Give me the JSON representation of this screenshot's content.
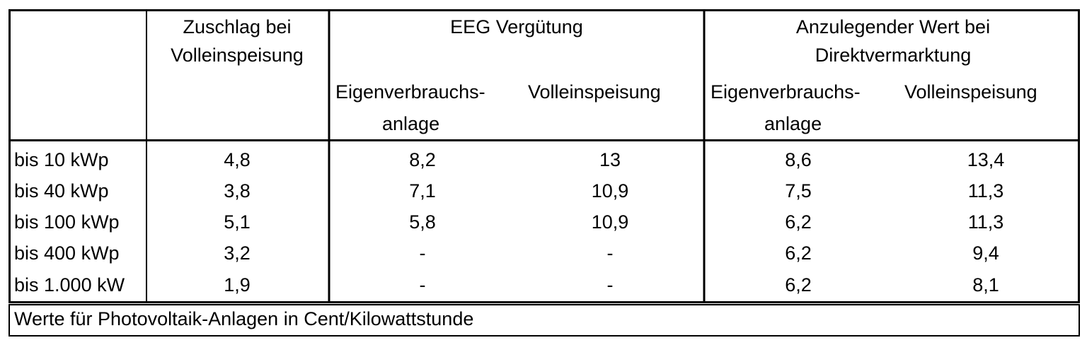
{
  "table": {
    "header": [
      {
        "lines": [
          "Zuschlag bei",
          "Volleinspeisung"
        ]
      },
      {
        "lines": [
          "EEG Vergütung"
        ],
        "subheaders": [
          [
            "Eigenverbrauchs-",
            "anlage"
          ],
          [
            "Volleinspeisung"
          ]
        ]
      },
      {
        "lines": [
          "Anzulegender Wert bei",
          "Direktvermarktung"
        ],
        "subheaders": [
          [
            "Eigenverbrauchs-",
            "anlage"
          ],
          [
            "Volleinspeisung"
          ]
        ]
      }
    ],
    "rows": [
      [
        "bis 10 kWp",
        "4,8",
        "8,2",
        "13",
        "8,6",
        "13,4"
      ],
      [
        "bis 40 kWp",
        "3,8",
        "7,1",
        "10,9",
        "7,5",
        "11,3"
      ],
      [
        "bis 100 kWp",
        "5,1",
        "5,8",
        "10,9",
        "6,2",
        "11,3"
      ],
      [
        "bis 400 kWp",
        "3,2",
        "-",
        "-",
        "6,2",
        "9,4"
      ],
      [
        "bis 1.000 kW",
        "1,9",
        "-",
        "-",
        "6,2",
        "8,1"
      ]
    ],
    "footnote": "Werte für Photovoltaik-Anlagen in Cent/Kilowattstunde"
  }
}
